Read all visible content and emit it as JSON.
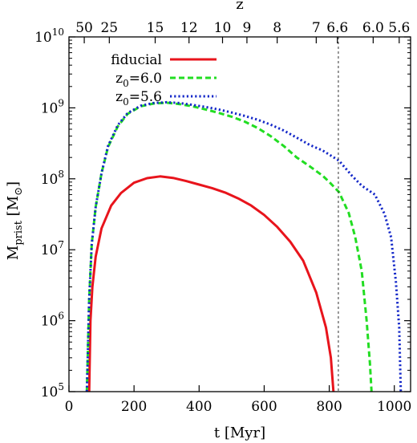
{
  "chart_data": {
    "type": "line",
    "xlabel": "t [Myr]",
    "ylabel_main": "M",
    "ylabel_sub": "prist",
    "ylabel_unit_open": " [M",
    "ylabel_unit_sym": "⊙",
    "ylabel_unit_close": "]",
    "top_axis_label": "z",
    "xlim": [
      0,
      1050
    ],
    "ylim": [
      100000,
      10000000000
    ],
    "yscale": "log",
    "x_ticks": [
      0,
      200,
      400,
      600,
      800,
      1000
    ],
    "x_tick_labels": [
      "0",
      "200",
      "400",
      "600",
      "800",
      "1000"
    ],
    "y_ticks": [
      100000,
      1000000,
      10000000,
      100000000,
      1000000000,
      10000000000
    ],
    "y_tick_labels": [
      {
        "base": "10",
        "exp": "5"
      },
      {
        "base": "10",
        "exp": "6"
      },
      {
        "base": "10",
        "exp": "7"
      },
      {
        "base": "10",
        "exp": "8"
      },
      {
        "base": "10",
        "exp": "9"
      },
      {
        "base": "10",
        "exp": "10"
      }
    ],
    "top_ticks": [
      {
        "label": "50",
        "t": 47
      },
      {
        "label": "25",
        "t": 124
      },
      {
        "label": "15",
        "t": 265
      },
      {
        "label": "12",
        "t": 369
      },
      {
        "label": "10",
        "t": 472
      },
      {
        "label": "9",
        "t": 547
      },
      {
        "label": "8",
        "t": 640
      },
      {
        "label": "7",
        "t": 760
      },
      {
        "label": "6.6",
        "t": 825
      },
      {
        "label": "6.0",
        "t": 935
      },
      {
        "label": "5.6",
        "t": 1015
      }
    ],
    "vline_x": 828,
    "grid": false,
    "legend_position": "top-left",
    "series": [
      {
        "name": "fiducial",
        "color": "#e8141c",
        "dash": "solid",
        "points": [
          [
            62,
            100000
          ],
          [
            66,
            1000000
          ],
          [
            72,
            3000000
          ],
          [
            82,
            8000000
          ],
          [
            100,
            20000000
          ],
          [
            130,
            42000000
          ],
          [
            160,
            63000000
          ],
          [
            200,
            88000000
          ],
          [
            240,
            102000000
          ],
          [
            280,
            108000000
          ],
          [
            320,
            103000000
          ],
          [
            360,
            93000000
          ],
          [
            400,
            83000000
          ],
          [
            440,
            74000000
          ],
          [
            480,
            64000000
          ],
          [
            520,
            53000000
          ],
          [
            560,
            42000000
          ],
          [
            600,
            31000000
          ],
          [
            640,
            21000000
          ],
          [
            680,
            13000000
          ],
          [
            720,
            7000000
          ],
          [
            760,
            2500000
          ],
          [
            790,
            800000
          ],
          [
            805,
            300000
          ],
          [
            813,
            100000
          ]
        ]
      },
      {
        "name": "z0=6.0",
        "name_parts": {
          "base": "z",
          "sub": "0",
          "rest": "=6.0"
        },
        "color": "#22dd22",
        "dash": "dashed",
        "points": [
          [
            55,
            100000
          ],
          [
            62,
            2000000
          ],
          [
            70,
            12000000
          ],
          [
            82,
            40000000
          ],
          [
            100,
            120000000
          ],
          [
            120,
            280000000
          ],
          [
            150,
            550000000
          ],
          [
            180,
            820000000
          ],
          [
            220,
            1050000000
          ],
          [
            260,
            1150000000
          ],
          [
            300,
            1180000000
          ],
          [
            340,
            1130000000
          ],
          [
            380,
            1050000000
          ],
          [
            420,
            950000000
          ],
          [
            460,
            850000000
          ],
          [
            500,
            750000000
          ],
          [
            540,
            640000000
          ],
          [
            580,
            520000000
          ],
          [
            620,
            400000000
          ],
          [
            660,
            290000000
          ],
          [
            700,
            200000000
          ],
          [
            740,
            150000000
          ],
          [
            780,
            110000000
          ],
          [
            800,
            90000000
          ],
          [
            830,
            65000000
          ],
          [
            860,
            33000000
          ],
          [
            880,
            15000000
          ],
          [
            900,
            5000000
          ],
          [
            915,
            1000000
          ],
          [
            925,
            250000
          ],
          [
            930,
            100000
          ]
        ]
      },
      {
        "name": "z0=5.6",
        "name_parts": {
          "base": "z",
          "sub": "0",
          "rest": "=5.6"
        },
        "color": "#1428c8",
        "dash": "dotted",
        "points": [
          [
            55,
            100000
          ],
          [
            62,
            2000000
          ],
          [
            70,
            12000000
          ],
          [
            82,
            40000000
          ],
          [
            100,
            120000000
          ],
          [
            120,
            290000000
          ],
          [
            150,
            570000000
          ],
          [
            180,
            840000000
          ],
          [
            220,
            1070000000
          ],
          [
            260,
            1170000000
          ],
          [
            300,
            1200000000
          ],
          [
            340,
            1170000000
          ],
          [
            380,
            1100000000
          ],
          [
            420,
            1030000000
          ],
          [
            460,
            950000000
          ],
          [
            500,
            860000000
          ],
          [
            540,
            770000000
          ],
          [
            580,
            680000000
          ],
          [
            620,
            580000000
          ],
          [
            660,
            480000000
          ],
          [
            700,
            380000000
          ],
          [
            740,
            300000000
          ],
          [
            780,
            250000000
          ],
          [
            830,
            180000000
          ],
          [
            870,
            110000000
          ],
          [
            900,
            80000000
          ],
          [
            940,
            60000000
          ],
          [
            970,
            32000000
          ],
          [
            990,
            15000000
          ],
          [
            1005,
            3500000
          ],
          [
            1015,
            800000
          ],
          [
            1020,
            100000
          ]
        ]
      }
    ]
  }
}
